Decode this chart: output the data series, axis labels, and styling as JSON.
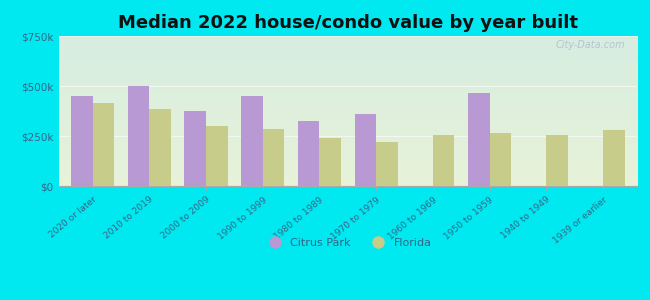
{
  "title": "Median 2022 house/condo value by year built",
  "categories": [
    "2020 or later",
    "2010 to 2019",
    "2000 to 2009",
    "1990 to 1999",
    "1980 to 1989",
    "1970 to 1979",
    "1960 to 1969",
    "1950 to 1959",
    "1940 to 1949",
    "1939 or earlier"
  ],
  "citrus_park": [
    450000,
    500000,
    375000,
    450000,
    325000,
    360000,
    0,
    465000,
    0,
    0
  ],
  "florida": [
    415000,
    385000,
    300000,
    285000,
    240000,
    220000,
    255000,
    265000,
    255000,
    278000
  ],
  "citrus_park_color": "#b899d4",
  "florida_color": "#c8cc8a",
  "background_outer": "#00e8f0",
  "grad_top": "#d8ede0",
  "grad_bottom": "#e8f2d8",
  "ylim": [
    0,
    750000
  ],
  "yticks": [
    0,
    250000,
    500000,
    750000
  ],
  "ytick_labels": [
    "$0",
    "$250k",
    "$500k",
    "$750k"
  ],
  "title_fontsize": 13,
  "legend_citrus": "Citrus Park",
  "legend_florida": "Florida",
  "bar_width": 0.38,
  "watermark": "City-Data.com"
}
